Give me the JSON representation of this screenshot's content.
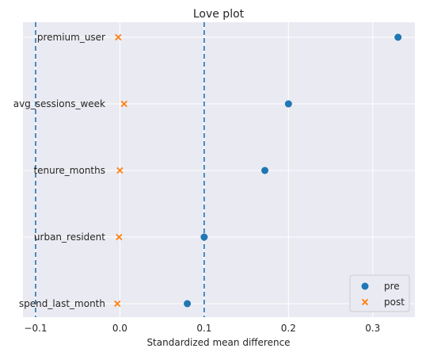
{
  "chart_data": {
    "type": "scatter",
    "title": "Love plot",
    "xlabel": "Standardized mean difference",
    "ylabel": "",
    "xlim": [
      -0.115,
      0.35
    ],
    "xticks": [
      -0.1,
      0.0,
      0.1,
      0.2,
      0.3
    ],
    "xtick_labels": [
      "−0.1",
      "0.0",
      "0.1",
      "0.2",
      "0.3"
    ],
    "categories": [
      "premium_user",
      "avg_sessions_week",
      "tenure_months",
      "urban_resident",
      "spend_last_month"
    ],
    "threshold_lines": [
      -0.1,
      0.1
    ],
    "grid": true,
    "legend_position": "bottom-right",
    "series": [
      {
        "name": "pre",
        "marker": "circle",
        "color": "#1f77b4",
        "values": [
          0.33,
          0.2,
          0.172,
          0.1,
          0.08
        ]
      },
      {
        "name": "post",
        "marker": "x",
        "color": "#ff7f0e",
        "values": [
          -0.002,
          0.005,
          0.0,
          -0.001,
          -0.003
        ]
      }
    ]
  }
}
